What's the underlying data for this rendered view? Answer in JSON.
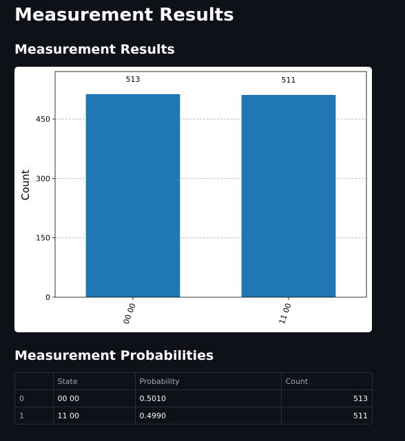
{
  "page": {
    "title": "Measurement Results"
  },
  "chart_section": {
    "heading": "Measurement Results"
  },
  "chart_data": {
    "type": "bar",
    "title": "",
    "xlabel": "",
    "ylabel": "Count",
    "categories": [
      "00 00",
      "11 00"
    ],
    "values": [
      513,
      511
    ],
    "data_labels": [
      "513",
      "511"
    ],
    "ylim": [
      0,
      570
    ],
    "yticks": [
      0,
      150,
      300,
      450
    ],
    "grid": "y-dashed",
    "bar_color": "#1f77b4"
  },
  "table_section": {
    "heading": "Measurement Probabilities",
    "columns": [
      "",
      "State",
      "Probability",
      "Count"
    ],
    "rows": [
      {
        "index": "0",
        "state": "00 00",
        "probability": "0.5010",
        "count": "513"
      },
      {
        "index": "1",
        "state": "11 00",
        "probability": "0.4990",
        "count": "511"
      }
    ]
  }
}
